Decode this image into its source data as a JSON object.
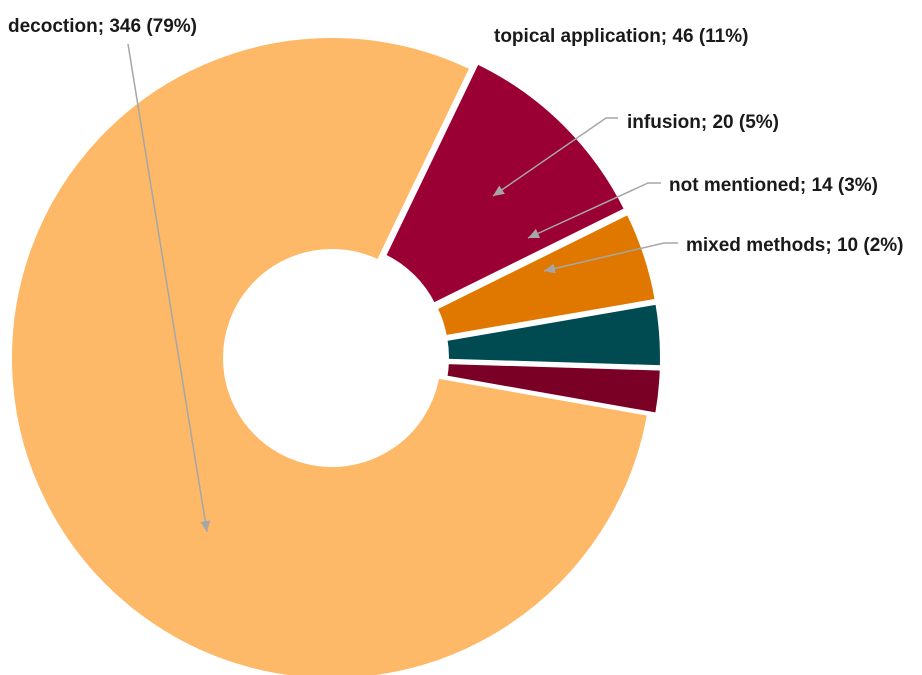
{
  "chart_data": {
    "type": "pie",
    "variant": "donut",
    "title": "",
    "legend": "none",
    "slices": [
      {
        "label": "decoction",
        "value": 346,
        "percent": "79%",
        "color": "#FDB967"
      },
      {
        "label": "topical application",
        "value": 46,
        "percent": "11%",
        "color": "#9B0034"
      },
      {
        "label": "infusion",
        "value": 20,
        "percent": "5%",
        "color": "#E07800"
      },
      {
        "label": "not mentioned",
        "value": 14,
        "percent": "3%",
        "color": "#004A52"
      },
      {
        "label": "mixed methods",
        "value": 10,
        "percent": "2%",
        "color": "#7A0026"
      }
    ],
    "data_labels": [
      "decoction; 346 (79%)",
      "topical application; 46 (11%)",
      "infusion; 20 (5%)",
      "not mentioned; 14 (3%)",
      "mixed methods; 10 (2%)"
    ],
    "leader_line_color": "#A6A6A6"
  }
}
